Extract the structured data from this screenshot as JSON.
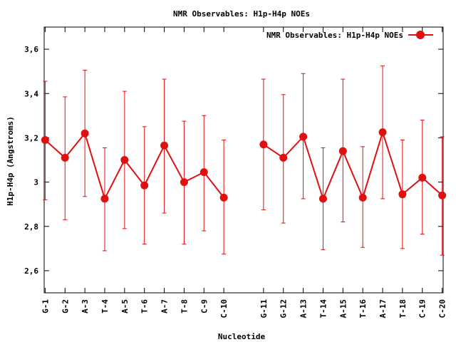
{
  "chart_data": {
    "type": "line",
    "title": "NMR Observables: H1p-H4p NOEs",
    "xlabel": "Nucleotide",
    "ylabel": "H1p-H4p (Angstroms)",
    "ylim": [
      2.5,
      3.7
    ],
    "yticks": [
      "2,6",
      "2,8",
      "3",
      "3,2",
      "3,4",
      "3,6"
    ],
    "ytick_values": [
      2.6,
      2.8,
      3.0,
      3.2,
      3.4,
      3.6
    ],
    "legend_position": "top-right",
    "grid": false,
    "color": "#e01010",
    "x": [
      1,
      2,
      3,
      4,
      5,
      6,
      7,
      8,
      9,
      10,
      12,
      13,
      14,
      15,
      16,
      17,
      18,
      19,
      20,
      21
    ],
    "xlim": [
      0.95,
      21.05
    ],
    "categories": [
      "G-1",
      "G-2",
      "A-3",
      "T-4",
      "A-5",
      "T-6",
      "A-7",
      "T-8",
      "C-9",
      "C-10",
      "G-11",
      "G-12",
      "A-13",
      "T-14",
      "A-15",
      "T-16",
      "A-17",
      "T-18",
      "C-19",
      "C-20"
    ],
    "series": [
      {
        "name": "NMR Observables: H1p-H4p NOEs",
        "values": [
          3.19,
          3.11,
          3.22,
          2.925,
          3.1,
          2.985,
          3.165,
          3.0,
          3.045,
          2.93,
          3.17,
          3.11,
          3.205,
          2.925,
          3.14,
          2.93,
          3.225,
          2.945,
          3.02,
          2.94
        ],
        "err_low": [
          2.92,
          2.83,
          2.935,
          2.69,
          2.79,
          2.72,
          2.86,
          2.72,
          2.78,
          2.675,
          2.875,
          2.815,
          2.925,
          2.695,
          2.82,
          2.705,
          2.925,
          2.7,
          2.765,
          2.67
        ],
        "err_high": [
          3.455,
          3.385,
          3.505,
          3.155,
          3.41,
          3.25,
          3.465,
          3.275,
          3.3,
          3.19,
          3.465,
          3.395,
          3.49,
          3.155,
          3.465,
          3.16,
          3.525,
          3.19,
          3.28,
          3.205
        ]
      }
    ],
    "segments": [
      [
        0,
        10
      ],
      [
        10,
        20
      ]
    ]
  }
}
